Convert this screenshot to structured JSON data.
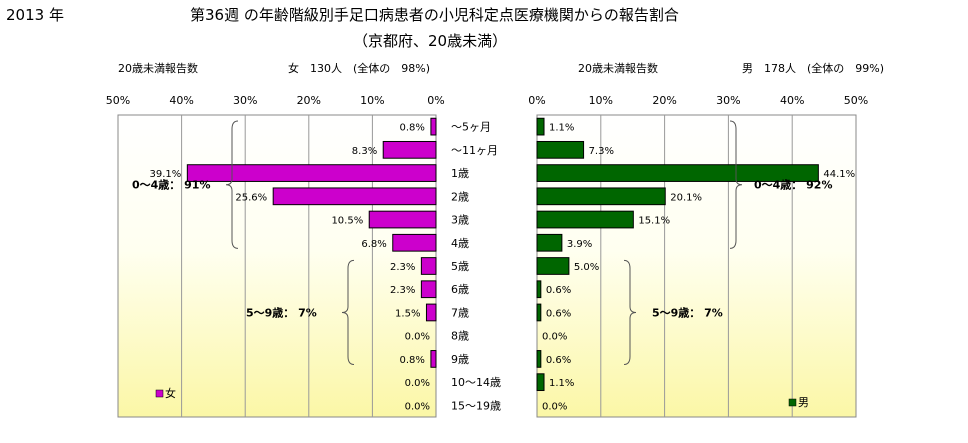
{
  "header": {
    "year": "2013 年",
    "title": "第36週 の年齢階級別手足口病患者の小児科定点医療機関からの報告割合",
    "subtitle": "（京都府、20歳未満）"
  },
  "chart_data": {
    "type": "bar",
    "categories": [
      "～5ヶ月",
      "～11ヶ月",
      "1歳",
      "2歳",
      "3歳",
      "4歳",
      "5歳",
      "6歳",
      "7歳",
      "8歳",
      "9歳",
      "10～14歳",
      "15～19歳"
    ],
    "xlim": [
      0,
      50
    ],
    "ticks": [
      "0%",
      "10%",
      "20%",
      "30%",
      "40%",
      "50%"
    ],
    "grid": true,
    "panels": [
      {
        "side": "left",
        "series_name": "女",
        "color": "#cc00cc",
        "values": [
          0.8,
          8.3,
          39.1,
          25.6,
          10.5,
          6.8,
          2.3,
          2.3,
          1.5,
          0.0,
          0.8,
          0.0,
          0.0
        ],
        "labels": [
          "0.8%",
          "8.3%",
          "39.1%",
          "25.6%",
          "10.5%",
          "6.8%",
          "2.3%",
          "2.3%",
          "1.5%",
          "0.0%",
          "0.8%",
          "0.0%",
          "0.0%"
        ],
        "count_label": "20歳未満報告数",
        "count_text": "女　130人　(全体の　98%)",
        "group1_label": "0～4歳：  91%",
        "group2_label": "5～9歳：  7%",
        "legend": "女"
      },
      {
        "side": "right",
        "series_name": "男",
        "color": "#006600",
        "values": [
          1.1,
          7.3,
          44.1,
          20.1,
          15.1,
          3.9,
          5.0,
          0.6,
          0.6,
          0.0,
          0.6,
          1.1,
          0.0
        ],
        "labels": [
          "1.1%",
          "7.3%",
          "44.1%",
          "20.1%",
          "15.1%",
          "3.9%",
          "5.0%",
          "0.6%",
          "0.6%",
          "0.0%",
          "0.6%",
          "1.1%",
          "0.0%"
        ],
        "count_label": "20歳未満報告数",
        "count_text": "男　178人　(全体の　99%)",
        "group1_label": "0～4歳：  92%",
        "group2_label": "5～9歳：  7%",
        "legend": "男"
      }
    ]
  }
}
